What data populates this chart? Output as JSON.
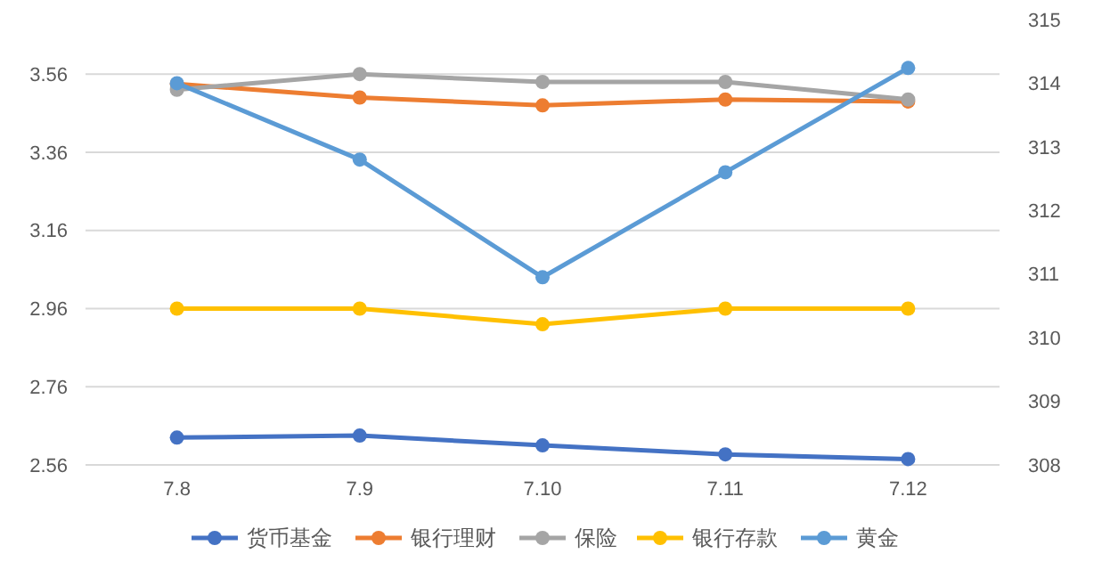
{
  "chart_data": {
    "type": "line",
    "categories": [
      "7.8",
      "7.9",
      "7.10",
      "7.11",
      "7.12"
    ],
    "series": [
      {
        "name": "货币基金",
        "color": "#4472c4",
        "values": [
          2.63,
          2.635,
          2.61,
          2.587,
          2.575
        ]
      },
      {
        "name": "银行理财",
        "color": "#ed7d31",
        "values": [
          3.535,
          3.5,
          3.48,
          3.495,
          3.49
        ]
      },
      {
        "name": "保险",
        "color": "#a5a5a5",
        "values": [
          3.52,
          3.56,
          3.54,
          3.54,
          3.495
        ]
      },
      {
        "name": "银行存款",
        "color": "#ffc000",
        "values": [
          2.96,
          2.96,
          2.92,
          2.96,
          2.96
        ]
      },
      {
        "name": "黄金",
        "color": "#5b9bd5",
        "axis": "y2",
        "values": [
          314.0,
          312.8,
          310.95,
          312.6,
          314.24
        ]
      }
    ],
    "ylim": [
      2.56,
      3.56
    ],
    "yticks": [
      2.56,
      2.76,
      2.96,
      3.16,
      3.36,
      3.56
    ],
    "y2lim": [
      308,
      315
    ],
    "y2ticks": [
      308,
      309,
      310,
      311,
      312,
      313,
      314,
      315
    ],
    "grid": "y",
    "legend": "bottom",
    "marker": "circle",
    "line_style": "solid"
  }
}
